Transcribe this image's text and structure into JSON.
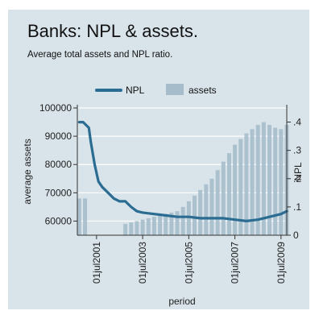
{
  "chart_data": {
    "type": "bar+line",
    "title": "Banks: NPL & assets.",
    "subtitle": "Average total assets and NPL ratio.",
    "xlabel": "period",
    "ylabel_left": "average assets",
    "ylabel_right": "NPL",
    "ylim_left": [
      55000,
      100000
    ],
    "ylim_right": [
      0,
      0.45
    ],
    "xlim": [
      "2000-09",
      "2009-10"
    ],
    "x_tick_labels": [
      "01jul2001",
      "01jul2003",
      "01jul2005",
      "01jul2007",
      "01jul2009"
    ],
    "y_left_ticks": [
      "100000",
      "90000",
      "80000",
      "70000",
      "60000"
    ],
    "y_right_ticks": [
      ".4",
      ".3",
      ".2",
      ".1",
      "0"
    ],
    "grid": true,
    "legend_position": "top",
    "colors": {
      "npl": "#2a6c92",
      "assets": "#a6bccb",
      "background": "#d9e3ea"
    },
    "series": [
      {
        "name": "NPL",
        "type": "line",
        "axis": "right",
        "points": [
          [
            "2000-10",
            0.4
          ],
          [
            "2000-12",
            0.4
          ],
          [
            "2001-03",
            0.38
          ],
          [
            "2001-04",
            0.33
          ],
          [
            "2001-06",
            0.25
          ],
          [
            "2001-08",
            0.19
          ],
          [
            "2001-10",
            0.17
          ],
          [
            "2002-01",
            0.15
          ],
          [
            "2002-04",
            0.13
          ],
          [
            "2002-07",
            0.12
          ],
          [
            "2002-10",
            0.12
          ],
          [
            "2003-01",
            0.1
          ],
          [
            "2003-04",
            0.085
          ],
          [
            "2003-07",
            0.08
          ],
          [
            "2004-01",
            0.075
          ],
          [
            "2004-07",
            0.07
          ],
          [
            "2005-01",
            0.065
          ],
          [
            "2005-07",
            0.065
          ],
          [
            "2006-01",
            0.06
          ],
          [
            "2006-07",
            0.06
          ],
          [
            "2007-01",
            0.06
          ],
          [
            "2007-07",
            0.055
          ],
          [
            "2008-01",
            0.05
          ],
          [
            "2008-07",
            0.055
          ],
          [
            "2009-01",
            0.065
          ],
          [
            "2009-07",
            0.075
          ],
          [
            "2009-10",
            0.085
          ]
        ]
      },
      {
        "name": "assets",
        "type": "bar",
        "axis": "left",
        "points": [
          [
            "2000-10",
            68000
          ],
          [
            "2001-01",
            68000
          ],
          [
            "2001-04",
            50000
          ],
          [
            "2001-07",
            50000
          ],
          [
            "2001-10",
            50000
          ],
          [
            "2002-01",
            50000
          ],
          [
            "2002-04",
            50000
          ],
          [
            "2002-07",
            50000
          ],
          [
            "2002-10",
            59000
          ],
          [
            "2003-01",
            59500
          ],
          [
            "2003-04",
            60000
          ],
          [
            "2003-07",
            60500
          ],
          [
            "2003-10",
            61000
          ],
          [
            "2004-01",
            61500
          ],
          [
            "2004-04",
            62000
          ],
          [
            "2004-07",
            62500
          ],
          [
            "2004-10",
            63000
          ],
          [
            "2005-01",
            63500
          ],
          [
            "2005-04",
            65000
          ],
          [
            "2005-07",
            67000
          ],
          [
            "2005-10",
            69000
          ],
          [
            "2006-01",
            71000
          ],
          [
            "2006-04",
            73000
          ],
          [
            "2006-07",
            75000
          ],
          [
            "2006-10",
            78000
          ],
          [
            "2007-01",
            81000
          ],
          [
            "2007-04",
            84000
          ],
          [
            "2007-07",
            87000
          ],
          [
            "2007-10",
            89000
          ],
          [
            "2008-01",
            91000
          ],
          [
            "2008-04",
            92500
          ],
          [
            "2008-07",
            94000
          ],
          [
            "2008-10",
            95000
          ],
          [
            "2009-01",
            94000
          ],
          [
            "2009-04",
            93000
          ],
          [
            "2009-07",
            92500
          ],
          [
            "2009-10",
            94000
          ]
        ]
      }
    ]
  }
}
